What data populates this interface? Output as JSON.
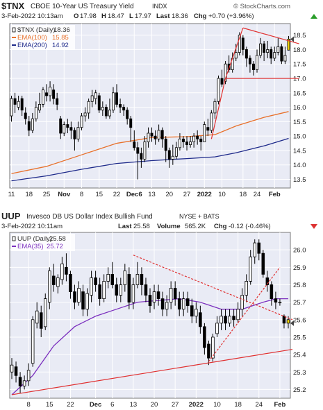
{
  "chart_data": [
    {
      "type": "candlestick",
      "symbol": "$TNX",
      "title": "CBOE 10-Year US Treasury Yield",
      "exchange": "INDX",
      "watermark": "© StockCharts.com",
      "header": {
        "date": "3-Feb-2022 10:13am",
        "open_label": "O",
        "open": "17.98",
        "high_label": "H",
        "high": "18.47",
        "low_label": "L",
        "low": "17.97",
        "last_label": "Last",
        "last": "18.36",
        "chg_label": "Chg",
        "chg": "+0.70 (+3.96%)"
      },
      "legend": [
        {
          "name": "$TNX (Daily)",
          "value": "18.36",
          "color": "#333333"
        },
        {
          "name": "EMA(100)",
          "value": "15.85",
          "color": "#e8702a"
        },
        {
          "name": "EMA(200)",
          "value": "14.92",
          "color": "#1e2a8a"
        }
      ],
      "ylim": [
        13.2,
        18.9
      ],
      "yticks": [
        13.5,
        14.0,
        14.5,
        15.0,
        15.5,
        16.0,
        16.5,
        17.0,
        17.5,
        18.0,
        18.5
      ],
      "ytick_labels": [
        "13.5",
        "14.0",
        "14.5",
        "15.0",
        "15.5",
        "16.0",
        "16.5",
        "17.0",
        "17.5",
        "18.0",
        "18.5"
      ],
      "xtick_labels": [
        "11",
        "18",
        "25",
        "Nov",
        "8",
        "15",
        "22",
        "Dec6",
        "13",
        "20",
        "27",
        "2022",
        "10",
        "18",
        "24",
        "Feb"
      ],
      "xticks": [
        0,
        5,
        10,
        15,
        20,
        25,
        30,
        35,
        40,
        45,
        50,
        55,
        60,
        66,
        70,
        75
      ],
      "bold_xticks": [
        "Nov",
        "Dec6",
        "2022",
        "Feb"
      ],
      "n_days": 80,
      "candles": [
        [
          15.7,
          16.3,
          16.4,
          15.5
        ],
        [
          16.3,
          16.1,
          16.5,
          15.8
        ],
        [
          16.0,
          16.2,
          16.4,
          15.9
        ],
        [
          16.3,
          15.9,
          16.4,
          15.7
        ],
        [
          15.8,
          15.6,
          16.0,
          15.4
        ],
        [
          15.5,
          15.2,
          15.7,
          15.0
        ],
        [
          15.2,
          15.6,
          15.8,
          15.1
        ],
        [
          15.6,
          16.0,
          16.2,
          15.5
        ],
        [
          15.9,
          16.1,
          16.5,
          15.8
        ],
        [
          16.1,
          16.6,
          16.7,
          16.0
        ],
        [
          16.5,
          16.4,
          16.8,
          16.2
        ],
        [
          16.4,
          16.7,
          16.9,
          16.2
        ],
        [
          16.6,
          16.3,
          16.8,
          16.1
        ],
        [
          16.3,
          16.1,
          16.5,
          15.9
        ],
        [
          15.6,
          15.1,
          15.7,
          14.9
        ],
        [
          15.1,
          15.4,
          15.5,
          15.0
        ],
        [
          15.4,
          15.3,
          15.6,
          15.1
        ],
        [
          15.3,
          15.2,
          15.5,
          14.9
        ],
        [
          15.2,
          14.9,
          15.3,
          14.5
        ],
        [
          14.9,
          15.3,
          15.5,
          14.8
        ],
        [
          15.3,
          15.7,
          15.8,
          15.2
        ],
        [
          15.7,
          15.8,
          16.0,
          15.5
        ],
        [
          15.8,
          16.2,
          16.3,
          15.6
        ],
        [
          16.2,
          16.4,
          16.6,
          16.0
        ],
        [
          16.3,
          16.5,
          16.6,
          16.1
        ],
        [
          16.4,
          15.9,
          16.5,
          15.8
        ],
        [
          15.9,
          16.0,
          16.2,
          15.7
        ],
        [
          16.0,
          15.7,
          16.1,
          15.6
        ],
        [
          15.7,
          15.9,
          16.3,
          15.6
        ],
        [
          15.9,
          16.5,
          16.7,
          15.8
        ],
        [
          16.5,
          16.1,
          16.8,
          16.0
        ],
        [
          16.1,
          16.0,
          16.3,
          15.8
        ],
        [
          16.0,
          15.9,
          16.1,
          15.7
        ],
        [
          15.9,
          15.6,
          16.0,
          15.4
        ],
        [
          15.6,
          15.3,
          15.7,
          14.8
        ],
        [
          14.8,
          14.6,
          15.2,
          14.5
        ],
        [
          14.6,
          14.4,
          14.8,
          13.5
        ],
        [
          14.4,
          14.2,
          14.6,
          13.9
        ],
        [
          14.2,
          14.8,
          15.0,
          14.1
        ],
        [
          14.8,
          15.1,
          15.3,
          14.6
        ],
        [
          15.1,
          15.0,
          15.3,
          14.8
        ],
        [
          15.0,
          14.9,
          15.2,
          14.7
        ],
        [
          14.9,
          15.2,
          15.4,
          14.8
        ],
        [
          15.2,
          14.9,
          15.3,
          14.6
        ],
        [
          14.9,
          14.5,
          15.0,
          14.1
        ],
        [
          14.5,
          14.2,
          14.6,
          13.9
        ],
        [
          14.2,
          14.3,
          14.7,
          14.0
        ],
        [
          14.3,
          14.6,
          14.8,
          14.2
        ],
        [
          14.6,
          14.9,
          15.1,
          14.5
        ],
        [
          14.9,
          14.8,
          15.0,
          14.6
        ],
        [
          14.8,
          14.7,
          15.0,
          14.5
        ],
        [
          14.7,
          14.8,
          15.0,
          14.6
        ],
        [
          14.8,
          15.0,
          15.1,
          14.6
        ],
        [
          15.0,
          14.9,
          15.2,
          14.7
        ],
        [
          14.9,
          14.8,
          15.0,
          14.5
        ],
        [
          14.8,
          15.4,
          15.5,
          14.8
        ],
        [
          15.3,
          15.2,
          15.6,
          15.0
        ],
        [
          15.2,
          15.8,
          15.9,
          15.1
        ],
        [
          15.8,
          16.2,
          16.3,
          15.6
        ],
        [
          16.2,
          17.0,
          17.1,
          16.1
        ],
        [
          17.0,
          16.8,
          17.3,
          16.7
        ],
        [
          16.9,
          17.5,
          17.6,
          16.8
        ],
        [
          17.5,
          17.3,
          17.8,
          17.2
        ],
        [
          17.3,
          17.7,
          17.9,
          17.2
        ],
        [
          17.7,
          17.9,
          18.2,
          17.6
        ],
        [
          17.9,
          18.5,
          18.6,
          17.8
        ],
        [
          18.4,
          18.0,
          18.5,
          17.8
        ],
        [
          18.0,
          17.7,
          18.1,
          17.4
        ],
        [
          17.7,
          17.5,
          17.8,
          17.2
        ],
        [
          17.5,
          17.3,
          17.6,
          17.1
        ],
        [
          17.3,
          17.8,
          18.0,
          17.2
        ],
        [
          17.8,
          18.2,
          18.4,
          17.7
        ],
        [
          18.2,
          17.9,
          18.3,
          17.6
        ],
        [
          17.9,
          18.0,
          18.3,
          17.7
        ],
        [
          18.0,
          17.7,
          18.1,
          17.5
        ],
        [
          17.7,
          17.9,
          18.1,
          17.6
        ],
        [
          17.9,
          18.1,
          18.4,
          17.8
        ],
        [
          18.1,
          17.6,
          18.2,
          17.5
        ],
        [
          17.6,
          17.8,
          18.1,
          17.5
        ],
        [
          17.98,
          18.36,
          18.47,
          17.97
        ]
      ],
      "ema100": [
        [
          0,
          13.7
        ],
        [
          10,
          13.95
        ],
        [
          20,
          14.35
        ],
        [
          30,
          14.75
        ],
        [
          40,
          14.95
        ],
        [
          50,
          14.98
        ],
        [
          58,
          15.05
        ],
        [
          64,
          15.35
        ],
        [
          72,
          15.65
        ],
        [
          79,
          15.85
        ]
      ],
      "ema200": [
        [
          0,
          13.45
        ],
        [
          10,
          13.62
        ],
        [
          20,
          13.85
        ],
        [
          30,
          14.05
        ],
        [
          40,
          14.15
        ],
        [
          50,
          14.22
        ],
        [
          58,
          14.28
        ],
        [
          64,
          14.42
        ],
        [
          72,
          14.66
        ],
        [
          79,
          14.92
        ]
      ],
      "trendlines": [
        {
          "points": [
            [
              57,
              14.9
            ],
            [
              61,
              17.0
            ]
          ],
          "color": "#e03030",
          "style": "solid"
        },
        {
          "points": [
            [
              61,
              17.0
            ],
            [
              66,
              18.75
            ]
          ],
          "color": "#e03030",
          "style": "solid"
        },
        {
          "points": [
            [
              66,
              18.75
            ],
            [
              82,
              18.2
            ]
          ],
          "color": "#e03030",
          "style": "solid"
        },
        {
          "points": [
            [
              61,
              17.0
            ],
            [
              82,
              17.0
            ]
          ],
          "color": "#e03030",
          "style": "solid"
        }
      ]
    },
    {
      "type": "candlestick",
      "symbol": "UUP",
      "title": "Invesco DB US Dollar Index Bullish Fund",
      "exchange": "NYSE + BATS",
      "header": {
        "date": "3-Feb-2022 10:11am",
        "last_label": "Last",
        "last": "25.58",
        "volume_label": "Volume",
        "volume": "565.2K",
        "chg_label": "Chg",
        "chg": "-0.12 (-0.46%)"
      },
      "legend": [
        {
          "name": "UUP (Daily)",
          "value": "25.58",
          "color": "#333333"
        },
        {
          "name": "EMA(35)",
          "value": "25.72",
          "color": "#7b2fbe"
        }
      ],
      "ylim": [
        25.15,
        26.1
      ],
      "yticks": [
        25.2,
        25.3,
        25.4,
        25.5,
        25.6,
        25.7,
        25.8,
        25.9,
        26.0
      ],
      "ytick_labels": [
        "25.2",
        "25.3",
        "25.4",
        "25.5",
        "25.6",
        "25.7",
        "25.8",
        "25.9",
        "26.0"
      ],
      "xtick_labels": [
        "8",
        "15",
        "22",
        "Dec",
        "6",
        "13",
        "20",
        "27",
        "2022",
        "10",
        "18",
        "24",
        "Feb"
      ],
      "xticks": [
        4,
        9,
        14,
        20,
        24,
        29,
        34,
        39,
        44,
        49,
        54,
        59,
        64
      ],
      "bold_xticks": [
        "Dec",
        "2022",
        "Feb"
      ],
      "n_days": 67,
      "candles": [
        [
          25.3,
          25.34,
          25.38,
          25.26
        ],
        [
          25.33,
          25.28,
          25.36,
          25.24
        ],
        [
          25.27,
          25.22,
          25.3,
          25.18
        ],
        [
          25.22,
          25.25,
          25.28,
          25.2
        ],
        [
          25.25,
          25.31,
          25.35,
          25.22
        ],
        [
          25.35,
          25.6,
          25.62,
          25.33
        ],
        [
          25.58,
          25.65,
          25.7,
          25.55
        ],
        [
          25.64,
          25.55,
          25.68,
          25.5
        ],
        [
          25.56,
          25.72,
          25.75,
          25.54
        ],
        [
          25.7,
          25.88,
          25.9,
          25.66
        ],
        [
          25.85,
          25.8,
          25.92,
          25.76
        ],
        [
          25.79,
          25.84,
          25.86,
          25.75
        ],
        [
          25.83,
          25.92,
          25.96,
          25.8
        ],
        [
          25.9,
          25.86,
          25.98,
          25.82
        ],
        [
          25.86,
          25.76,
          25.88,
          25.72
        ],
        [
          25.76,
          25.7,
          25.8,
          25.66
        ],
        [
          25.7,
          25.78,
          25.82,
          25.68
        ],
        [
          25.76,
          25.66,
          25.8,
          25.62
        ],
        [
          25.66,
          25.75,
          25.78,
          25.62
        ],
        [
          25.74,
          25.84,
          25.88,
          25.7
        ],
        [
          25.84,
          25.8,
          25.88,
          25.76
        ],
        [
          25.8,
          25.72,
          25.84,
          25.68
        ],
        [
          25.72,
          25.82,
          25.86,
          25.7
        ],
        [
          25.82,
          25.86,
          25.9,
          25.78
        ],
        [
          25.86,
          25.8,
          25.93,
          25.78
        ],
        [
          25.8,
          25.74,
          25.84,
          25.7
        ],
        [
          25.74,
          25.8,
          25.84,
          25.7
        ],
        [
          25.8,
          25.88,
          25.92,
          25.76
        ],
        [
          25.86,
          25.7,
          25.9,
          25.66
        ],
        [
          25.7,
          25.8,
          25.84,
          25.66
        ],
        [
          25.8,
          25.86,
          25.93,
          25.78
        ],
        [
          25.86,
          25.8,
          25.9,
          25.74
        ],
        [
          25.8,
          25.74,
          25.84,
          25.7
        ],
        [
          25.74,
          25.68,
          25.78,
          25.64
        ],
        [
          25.7,
          25.76,
          25.8,
          25.66
        ],
        [
          25.76,
          25.72,
          25.8,
          25.68
        ],
        [
          25.72,
          25.66,
          25.76,
          25.62
        ],
        [
          25.66,
          25.7,
          25.74,
          25.62
        ],
        [
          25.7,
          25.78,
          25.82,
          25.66
        ],
        [
          25.78,
          25.72,
          25.82,
          25.68
        ],
        [
          25.72,
          25.66,
          25.76,
          25.62
        ],
        [
          25.66,
          25.72,
          25.76,
          25.62
        ],
        [
          25.72,
          25.68,
          25.76,
          25.64
        ],
        [
          25.68,
          25.62,
          25.72,
          25.58
        ],
        [
          25.62,
          25.66,
          25.7,
          25.58
        ],
        [
          25.64,
          25.56,
          25.68,
          25.52
        ],
        [
          25.56,
          25.44,
          25.58,
          25.4
        ],
        [
          25.46,
          25.38,
          25.48,
          25.34
        ],
        [
          25.38,
          25.5,
          25.52,
          25.36
        ],
        [
          25.52,
          25.58,
          25.62,
          25.5
        ],
        [
          25.58,
          25.62,
          25.66,
          25.54
        ],
        [
          25.62,
          25.58,
          25.66,
          25.54
        ],
        [
          25.58,
          25.62,
          25.66,
          25.56
        ],
        [
          25.62,
          25.6,
          25.66,
          25.56
        ],
        [
          25.6,
          25.66,
          25.7,
          25.58
        ],
        [
          25.66,
          25.74,
          25.78,
          25.62
        ],
        [
          25.74,
          25.82,
          25.86,
          25.7
        ],
        [
          25.82,
          25.96,
          26.0,
          25.8
        ],
        [
          25.96,
          26.04,
          26.06,
          25.92
        ],
        [
          26.04,
          25.98,
          26.06,
          25.94
        ],
        [
          25.98,
          25.86,
          26.0,
          25.84
        ],
        [
          25.84,
          25.8,
          25.88,
          25.76
        ],
        [
          25.8,
          25.72,
          25.82,
          25.68
        ],
        [
          25.72,
          25.7,
          25.76,
          25.66
        ],
        [
          25.7,
          25.7,
          25.72,
          25.68
        ],
        [
          25.62,
          25.58,
          25.63,
          25.55
        ],
        [
          25.6,
          25.58,
          25.62,
          25.55
        ]
      ],
      "ema35": [
        [
          0,
          25.17
        ],
        [
          5,
          25.28
        ],
        [
          10,
          25.45
        ],
        [
          15,
          25.56
        ],
        [
          20,
          25.62
        ],
        [
          25,
          25.66
        ],
        [
          30,
          25.7
        ],
        [
          35,
          25.71
        ],
        [
          40,
          25.72
        ],
        [
          45,
          25.7
        ],
        [
          50,
          25.66
        ],
        [
          55,
          25.66
        ],
        [
          60,
          25.7
        ],
        [
          63,
          25.72
        ],
        [
          66,
          25.72
        ]
      ],
      "trendlines": [
        {
          "points": [
            [
              0,
              25.17
            ],
            [
              67,
              25.43
            ]
          ],
          "color": "#e03030",
          "style": "solid"
        },
        {
          "points": [
            [
              29,
              25.97
            ],
            [
              67,
              25.6
            ]
          ],
          "color": "#e03030",
          "style": "dashed"
        },
        {
          "points": [
            [
              47,
              25.36
            ],
            [
              64,
              25.9
            ]
          ],
          "color": "#e03030",
          "style": "dashed"
        }
      ]
    }
  ]
}
